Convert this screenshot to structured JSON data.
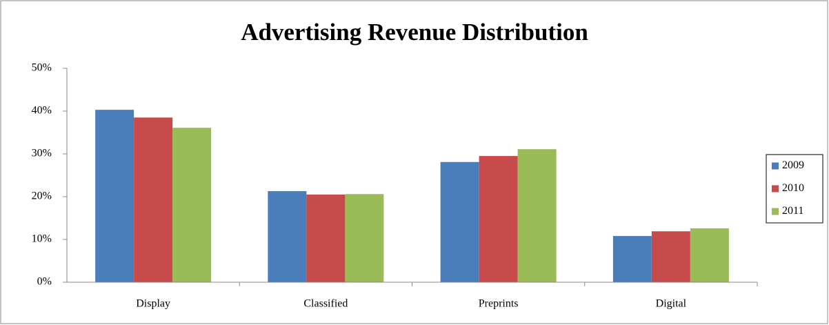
{
  "chart_data": {
    "type": "bar",
    "title": "Advertising Revenue Distribution",
    "categories": [
      "Display",
      "Classified",
      "Preprints",
      "Digital"
    ],
    "series": [
      {
        "name": "2009",
        "color": "#4a7ebb",
        "values": [
          40.3,
          21.3,
          28.1,
          10.8
        ]
      },
      {
        "name": "2010",
        "color": "#c84b4b",
        "values": [
          38.5,
          20.5,
          29.5,
          11.9
        ]
      },
      {
        "name": "2011",
        "color": "#9bbb59",
        "values": [
          36.1,
          20.6,
          31.1,
          12.6
        ]
      }
    ],
    "ylim": [
      0,
      50
    ],
    "yticks": [
      {
        "value": 0,
        "label": "0%"
      },
      {
        "value": 10,
        "label": "10%"
      },
      {
        "value": 20,
        "label": "20%"
      },
      {
        "value": 30,
        "label": "30%"
      },
      {
        "value": 40,
        "label": "40%"
      },
      {
        "value": 50,
        "label": "50%"
      }
    ],
    "legend": "right"
  }
}
